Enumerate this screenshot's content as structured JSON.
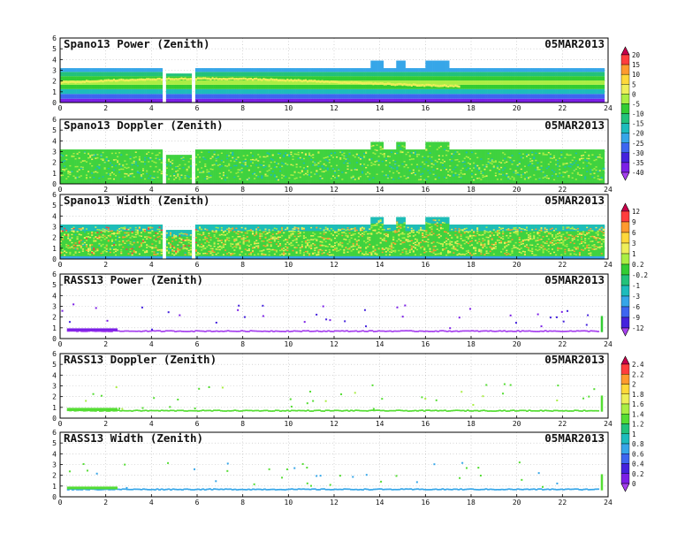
{
  "chart_data": [
    {
      "type": "heatmap",
      "title": "Spano13 Power (Zenith)",
      "date": "05MAR2013",
      "xlim": [
        0,
        24
      ],
      "ylim": [
        0,
        6
      ],
      "xticks": [
        "0",
        "2",
        "4",
        "6",
        "8",
        "10",
        "12",
        "14",
        "16",
        "18",
        "20",
        "22",
        "24"
      ],
      "yticks": [
        "0",
        "1",
        "2",
        "3",
        "4",
        "5",
        "6"
      ],
      "grid": "dotted",
      "data_gaps": [
        [
          4.45,
          4.6
        ],
        [
          5.7,
          5.85
        ]
      ],
      "top_height_km": [
        {
          "t": 0,
          "top": 3.2
        },
        {
          "t": 4.5,
          "top": 2.7
        },
        {
          "t": 5.8,
          "top": 3.2
        },
        {
          "t": 13.55,
          "top": 3.9
        },
        {
          "t": 14.1,
          "top": 3.2
        },
        {
          "t": 14.7,
          "top": 3.9
        },
        {
          "t": 15.1,
          "top": 3.2
        },
        {
          "t": 16.0,
          "top": 3.9
        },
        {
          "t": 17.0,
          "top": 3.2
        }
      ],
      "colorbar_id": "power"
    },
    {
      "type": "heatmap",
      "title": "Spano13 Doppler (Zenith)",
      "date": "05MAR2013",
      "xlim": [
        0,
        24
      ],
      "ylim": [
        0,
        6
      ],
      "xticks": [
        "0",
        "2",
        "4",
        "6",
        "8",
        "10",
        "12",
        "14",
        "16",
        "18",
        "20",
        "22",
        "24"
      ],
      "yticks": [
        "0",
        "1",
        "2",
        "3",
        "4",
        "5",
        "6"
      ],
      "grid": "dotted",
      "colorbar_id": "doppler_spano"
    },
    {
      "type": "heatmap",
      "title": "Spano13 Width (Zenith)",
      "date": "05MAR2013",
      "xlim": [
        0,
        24
      ],
      "ylim": [
        0,
        6
      ],
      "xticks": [
        "0",
        "2",
        "4",
        "6",
        "8",
        "10",
        "12",
        "14",
        "16",
        "18",
        "20",
        "22",
        "24"
      ],
      "yticks": [
        "0",
        "1",
        "2",
        "3",
        "4",
        "5",
        "6"
      ],
      "grid": "dotted",
      "colorbar_id": "width_spano"
    },
    {
      "type": "heatmap",
      "title": "RASS13 Power (Zenith)",
      "date": "05MAR2013",
      "xlim": [
        0,
        24
      ],
      "ylim": [
        0,
        6
      ],
      "xticks": [
        "0",
        "2",
        "4",
        "6",
        "8",
        "10",
        "12",
        "14",
        "16",
        "18",
        "20",
        "22",
        "24"
      ],
      "yticks": [
        "0",
        "1",
        "2",
        "3",
        "4",
        "5",
        "6"
      ],
      "grid": "dotted",
      "main_layer_height_km": 0.6,
      "colorbar_id": "rass"
    },
    {
      "type": "heatmap",
      "title": "RASS13 Doppler (Zenith)",
      "date": "05MAR2013",
      "xlim": [
        0,
        24
      ],
      "ylim": [
        0,
        6
      ],
      "xticks": [
        "0",
        "2",
        "4",
        "6",
        "8",
        "10",
        "12",
        "14",
        "16",
        "18",
        "20",
        "22",
        "24"
      ],
      "yticks": [
        "0",
        "1",
        "2",
        "3",
        "4",
        "5",
        "6"
      ],
      "grid": "dotted",
      "main_layer_height_km": 0.6,
      "colorbar_id": "rass_doppler"
    },
    {
      "type": "heatmap",
      "title": "RASS13 Width (Zenith)",
      "date": "05MAR2013",
      "xlim": [
        0,
        24
      ],
      "ylim": [
        0,
        6
      ],
      "xticks": [
        "0",
        "2",
        "4",
        "6",
        "8",
        "10",
        "12",
        "14",
        "16",
        "18",
        "20",
        "22",
        "24"
      ],
      "yticks": [
        "0",
        "1",
        "2",
        "3",
        "4",
        "5",
        "6"
      ],
      "grid": "dotted",
      "main_layer_height_km": 0.6,
      "colorbar_id": "rass_doppler"
    }
  ],
  "colorbars": [
    {
      "id": "power",
      "labels": [
        "20",
        "15",
        "10",
        "5",
        "0",
        "-5",
        "-10",
        "-15",
        "-20",
        "-25",
        "-30",
        "-35",
        "-40"
      ],
      "colors": [
        "#c8004a",
        "#ff3d3d",
        "#ff9a2e",
        "#ffd83a",
        "#eeee5a",
        "#aaee44",
        "#33cc33",
        "#22c27a",
        "#1dbcbc",
        "#36a6e8",
        "#3d66f0",
        "#4422dd",
        "#7b1fe6",
        "#a640ee"
      ]
    },
    {
      "id": "width",
      "labels": [
        "12",
        "9",
        "6",
        "3",
        "1",
        "0.2",
        "-0.2",
        "-1",
        "-3",
        "-6",
        "-9",
        "-12"
      ],
      "colors": [
        "#c8004a",
        "#ff3d3d",
        "#ff9a2e",
        "#ffd83a",
        "#eeee5a",
        "#aaee44",
        "#33cc33",
        "#22c27a",
        "#1dbcbc",
        "#36a6e8",
        "#3d66f0",
        "#4422dd",
        "#a640ee"
      ]
    },
    {
      "id": "rass_doppler",
      "labels": [
        "2.4",
        "2.2",
        "2",
        "1.8",
        "1.6",
        "1.4",
        "1.2",
        "1",
        "0.8",
        "0.6",
        "0.4",
        "0.2",
        "0"
      ],
      "colors": [
        "#c8004a",
        "#ff3d3d",
        "#ff9a2e",
        "#ffd83a",
        "#eeee5a",
        "#aaee44",
        "#55dd33",
        "#22c27a",
        "#1dbcbc",
        "#36a6e8",
        "#3d66f0",
        "#4422dd",
        "#7b1fe6",
        "#a640ee"
      ]
    }
  ]
}
